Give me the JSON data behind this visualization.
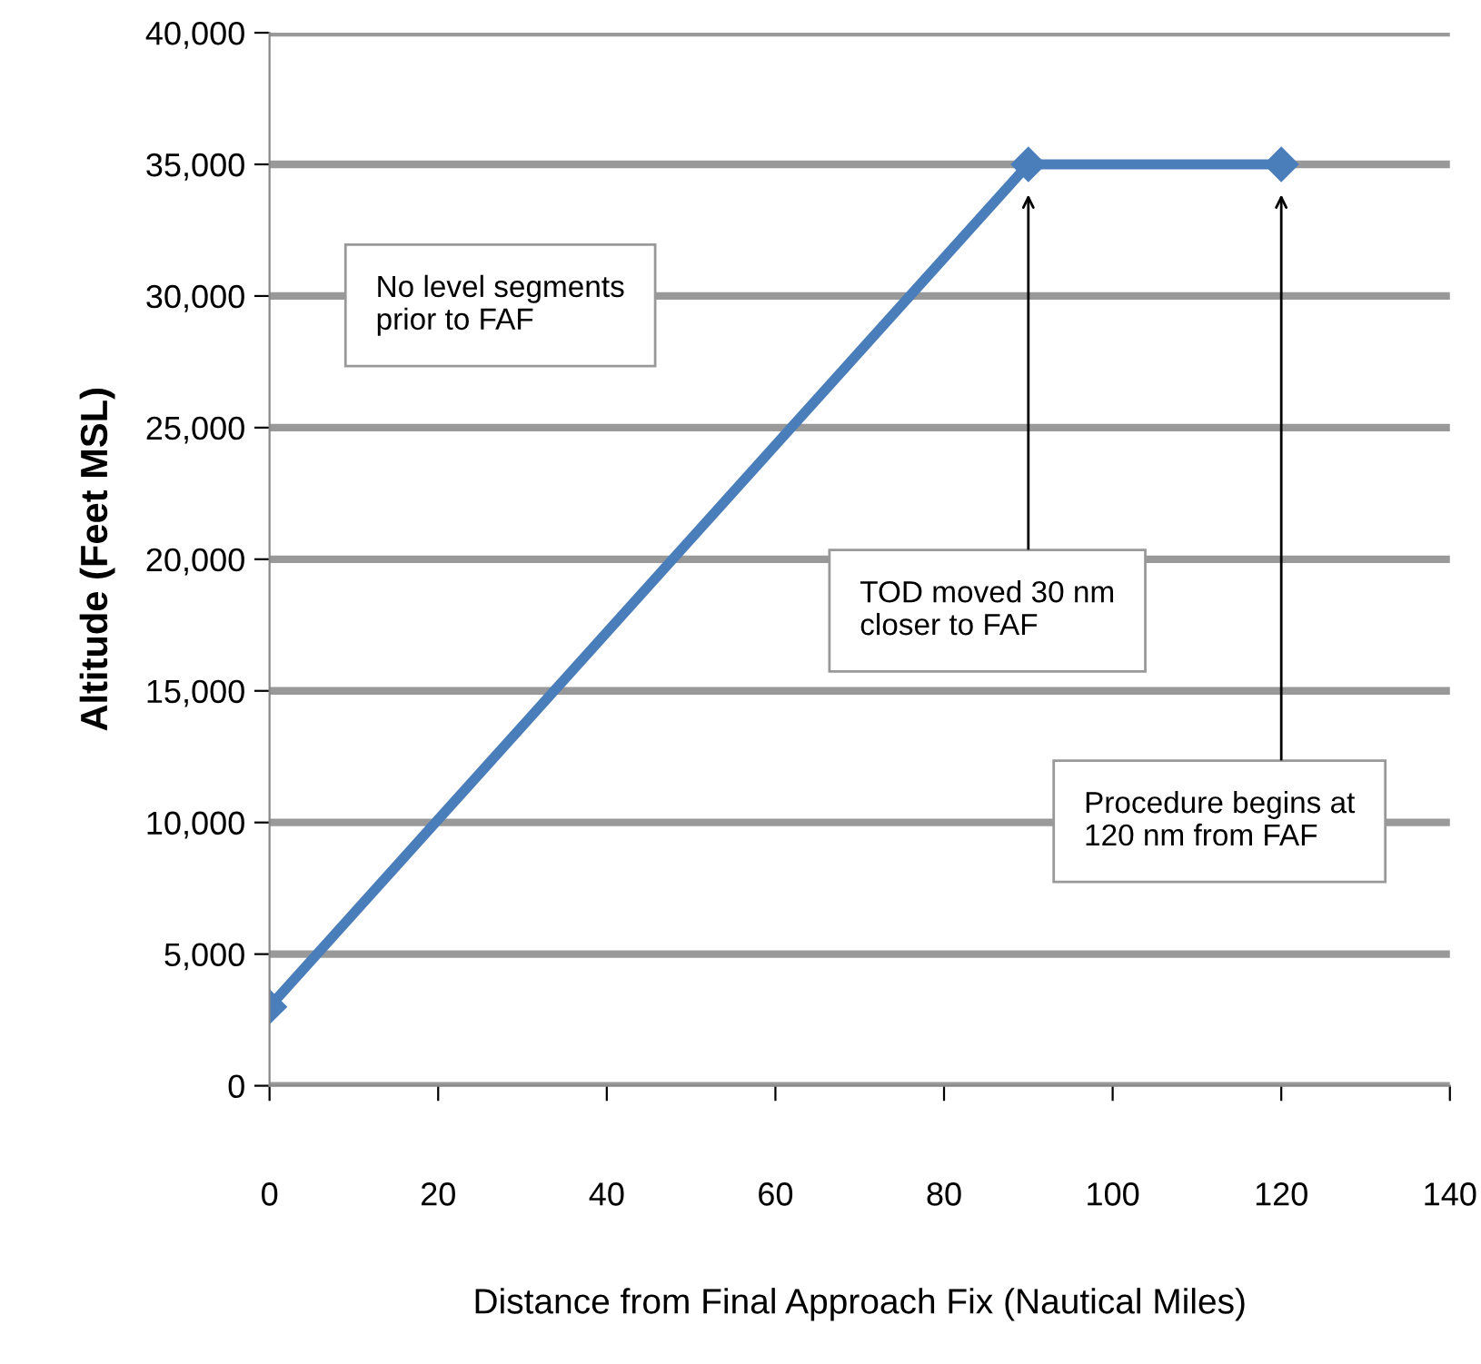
{
  "chart_data": {
    "type": "line",
    "xlabel": "Distance from Final Approach Fix (Nautical Miles)",
    "ylabel": "Altitude (Feet MSL)",
    "x": [
      0,
      90,
      120
    ],
    "series": [
      {
        "color": "#4a7ebb",
        "values": [
          3000,
          35000,
          35000
        ]
      }
    ],
    "xlim": [
      0,
      140
    ],
    "xticks": [
      0,
      20,
      40,
      60,
      80,
      100,
      120,
      140
    ],
    "ylim": [
      0,
      40000
    ],
    "yticks": [
      {
        "value": 0,
        "label": "0"
      },
      {
        "value": 5000,
        "label": "5,000"
      },
      {
        "value": 10000,
        "label": "10,000"
      },
      {
        "value": 15000,
        "label": "15,000"
      },
      {
        "value": 20000,
        "label": "20,000"
      },
      {
        "value": 25000,
        "label": "25,000"
      },
      {
        "value": 30000,
        "label": "30,000"
      },
      {
        "value": 35000,
        "label": "35,000"
      },
      {
        "value": 40000,
        "label": "40,000"
      }
    ],
    "grid": "y",
    "marker": "diamond",
    "line_style": "solid",
    "annotations": [
      "No level segments\nprior to FAF",
      "TOD moved 30 nm\ncloser to FAF",
      "Procedure begins at\n120 nm from FAF"
    ]
  }
}
